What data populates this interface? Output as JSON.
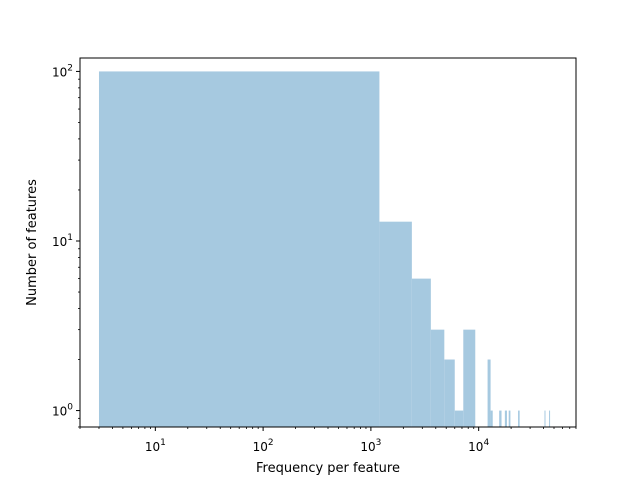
{
  "chart_data": {
    "type": "bar",
    "title": "",
    "xlabel": "Frequency per feature",
    "ylabel": "Number of features",
    "xscale": "log",
    "yscale": "log",
    "xlim": [
      2.0,
      80000
    ],
    "ylim": [
      0.8,
      120
    ],
    "grid": false,
    "color": "#a6c9e0",
    "x_ticks": [
      {
        "value": 10,
        "base": "10",
        "exp": "1"
      },
      {
        "value": 100,
        "base": "10",
        "exp": "2"
      },
      {
        "value": 1000,
        "base": "10",
        "exp": "3"
      },
      {
        "value": 10000,
        "base": "10",
        "exp": "4"
      }
    ],
    "y_ticks": [
      {
        "value": 1,
        "base": "10",
        "exp": "0"
      },
      {
        "value": 10,
        "base": "10",
        "exp": "1"
      },
      {
        "value": 100,
        "base": "10",
        "exp": "2"
      }
    ],
    "bins": [
      {
        "x0": 3.0,
        "x1": 1200,
        "count": 100
      },
      {
        "x0": 1200,
        "x1": 2400,
        "count": 13
      },
      {
        "x0": 2400,
        "x1": 3600,
        "count": 6
      },
      {
        "x0": 3600,
        "x1": 4800,
        "count": 3
      },
      {
        "x0": 4800,
        "x1": 6000,
        "count": 2
      },
      {
        "x0": 6000,
        "x1": 7200,
        "count": 1
      },
      {
        "x0": 7200,
        "x1": 9300,
        "count": 3
      },
      {
        "x0": 12100,
        "x1": 12900,
        "count": 2
      },
      {
        "x0": 12900,
        "x1": 13500,
        "count": 1
      },
      {
        "x0": 15500,
        "x1": 16300,
        "count": 1
      },
      {
        "x0": 17500,
        "x1": 18300,
        "count": 1
      },
      {
        "x0": 19000,
        "x1": 19700,
        "count": 1
      },
      {
        "x0": 23200,
        "x1": 24000,
        "count": 1
      },
      {
        "x0": 40800,
        "x1": 41500,
        "count": 1
      },
      {
        "x0": 45000,
        "x1": 45700,
        "count": 1
      }
    ]
  }
}
